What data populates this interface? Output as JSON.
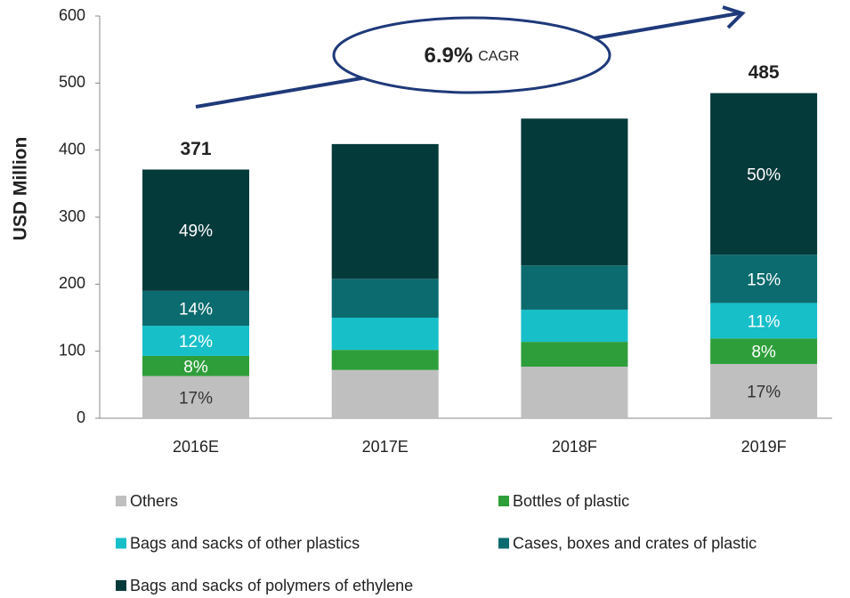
{
  "chart_data": {
    "type": "stacked_bar",
    "y_label": "USD Million",
    "categories": [
      "2016E",
      "2017E",
      "2018F",
      "2019F"
    ],
    "series": [
      {
        "name": "Others",
        "color": "#bfbfbf",
        "values": [
          63,
          72,
          77,
          81
        ],
        "labels": [
          "17%",
          null,
          null,
          "17%"
        ]
      },
      {
        "name": "Bottles of plastic",
        "color": "#2e9e3a",
        "values": [
          30,
          30,
          37,
          38
        ],
        "labels": [
          "8%",
          null,
          null,
          "8%"
        ]
      },
      {
        "name": "Bags and sacks of other plastics",
        "color": "#17bfc9",
        "values": [
          45,
          48,
          48,
          53
        ],
        "labels": [
          "12%",
          null,
          null,
          "11%"
        ]
      },
      {
        "name": "Cases, boxes and crates of plastic",
        "color": "#0b6b6e",
        "values": [
          52,
          58,
          66,
          72
        ],
        "labels": [
          "14%",
          null,
          null,
          "15%"
        ]
      },
      {
        "name": "Bags and sacks of polymers of ethylene",
        "color": "#053a3b",
        "values": [
          181,
          201,
          219,
          241
        ],
        "labels": [
          "49%",
          null,
          null,
          "50%"
        ]
      }
    ],
    "totals": [
      371,
      null,
      null,
      485
    ],
    "annotation": {
      "value": "6.9%",
      "text": "CAGR"
    },
    "ylim": [
      0,
      600
    ],
    "yticks": [
      0,
      100,
      200,
      300,
      400,
      500,
      600
    ],
    "grid": false,
    "legend": "bottom"
  }
}
